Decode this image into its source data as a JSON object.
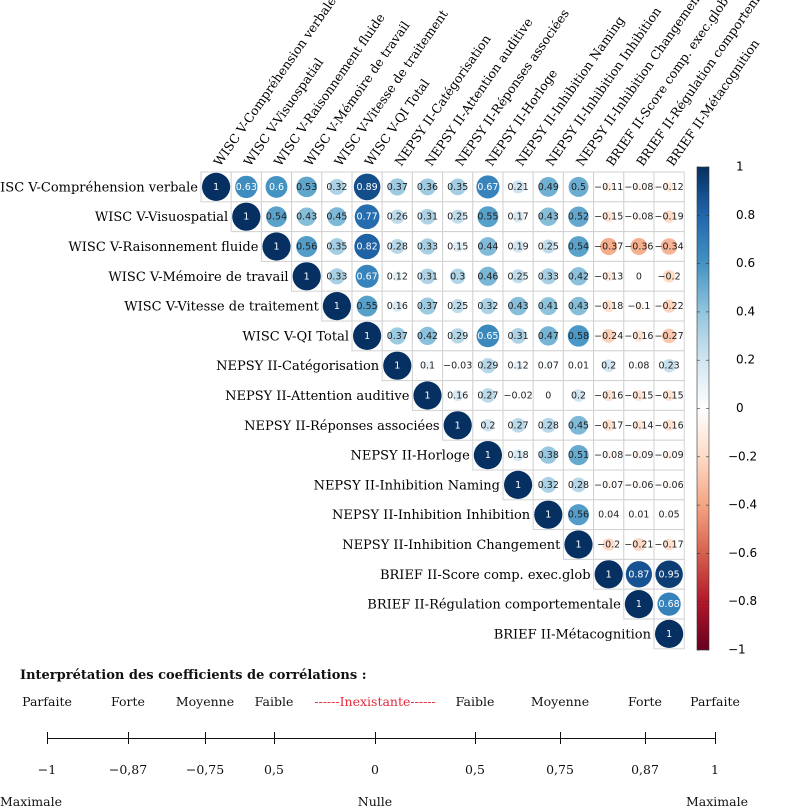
{
  "chart_data": {
    "type": "heatmap",
    "variables": [
      "WISC V-Compréhension verbale",
      "WISC V-Visuospatial",
      "WISC V-Raisonnement fluide",
      "WISC V-Mémoire de travail",
      "WISC V-Vitesse de traitement",
      "WISC V-QI Total",
      "NEPSY II-Catégorisation",
      "NEPSY II-Attention auditive",
      "NEPSY II-Réponses associées",
      "NEPSY II-Horloge",
      "NEPSY II-Inhibition Naming",
      "NEPSY II-Inhibition Inhibition",
      "NEPSY II-Inhibition Changement",
      "BRIEF II-Score comp. exec.glob",
      "BRIEF II-Régulation comportementale",
      "BRIEF II-Métacognition"
    ],
    "matrix_upper": [
      [
        "1",
        "0.63",
        "0.6",
        "0.53",
        "0.32",
        "0.89",
        "0.37",
        "0.36",
        "0.35",
        "0.67",
        "0.21",
        "0.49",
        "0.5",
        "−0.11",
        "−0.08",
        "−0.12"
      ],
      [
        "1",
        "0.54",
        "0.43",
        "0.45",
        "0.77",
        "0.26",
        "0.31",
        "0.25",
        "0.55",
        "0.17",
        "0.43",
        "0.52",
        "−0.15",
        "−0.08",
        "−0.19"
      ],
      [
        "1",
        "0.56",
        "0.35",
        "0.82",
        "0.28",
        "0.33",
        "0.15",
        "0.44",
        "0.19",
        "0.25",
        "0.54",
        "−0.37",
        "−0.36",
        "−0.34"
      ],
      [
        "1",
        "0.33",
        "0.67",
        "0.12",
        "0.31",
        "0.3",
        "0.46",
        "0.25",
        "0.33",
        "0.42",
        "−0.13",
        "0",
        "−0.2"
      ],
      [
        "1",
        "0.55",
        "0.16",
        "0.37",
        "0.25",
        "0.32",
        "0.43",
        "0.41",
        "0.43",
        "−0.18",
        "−0.1",
        "−0.22"
      ],
      [
        "1",
        "0.37",
        "0.42",
        "0.29",
        "0.65",
        "0.31",
        "0.47",
        "0.58",
        "−0.24",
        "−0.16",
        "−0.27"
      ],
      [
        "1",
        "0.1",
        "−0.03",
        "0.29",
        "0.12",
        "0.07",
        "0.01",
        "0.2",
        "0.08",
        "0.23"
      ],
      [
        "1",
        "0.16",
        "0.27",
        "−0.02",
        "0",
        "0.2",
        "−0.16",
        "−0.15",
        "−0.15"
      ],
      [
        "1",
        "0.2",
        "0.27",
        "0.28",
        "0.45",
        "−0.17",
        "−0.14",
        "−0.16"
      ],
      [
        "1",
        "0.18",
        "0.38",
        "0.51",
        "−0.08",
        "−0.09",
        "−0.09"
      ],
      [
        "1",
        "0.32",
        "0.28",
        "−0.07",
        "−0.06",
        "−0.06"
      ],
      [
        "1",
        "0.56",
        "0.04",
        "0.01",
        "0.05"
      ],
      [
        "1",
        "−0.2",
        "−0.21",
        "−0.17"
      ],
      [
        "1",
        "0.87",
        "0.95"
      ],
      [
        "1",
        "0.68"
      ],
      [
        "1"
      ]
    ],
    "color_scale": {
      "min": -1,
      "max": 1,
      "colors": {
        "neg": "#67001f",
        "mid": "#ffffff",
        "pos": "#053061"
      },
      "ticks": [
        "1",
        "0.8",
        "0.6",
        "0.4",
        "0.2",
        "0",
        "−0.2",
        "−0.4",
        "−0.6",
        "−0.8",
        "−1"
      ]
    }
  },
  "interpretation": {
    "title": "Interprétation des coefficients de corrélations :",
    "categories": [
      "Parfaite",
      "Forte",
      "Moyenne",
      "Faible",
      "------Inexistante------",
      "Faible",
      "Moyenne",
      "Forte",
      "Parfaite"
    ],
    "values": [
      "−1",
      "−0,87",
      "−0,75",
      "0,5",
      "0",
      "0,5",
      "0,75",
      "0,87",
      "1"
    ],
    "bottom_left": "Maximale",
    "bottom_center": "Nulle",
    "bottom_right": "Maximale",
    "highlight_color": "#e32a3c"
  }
}
